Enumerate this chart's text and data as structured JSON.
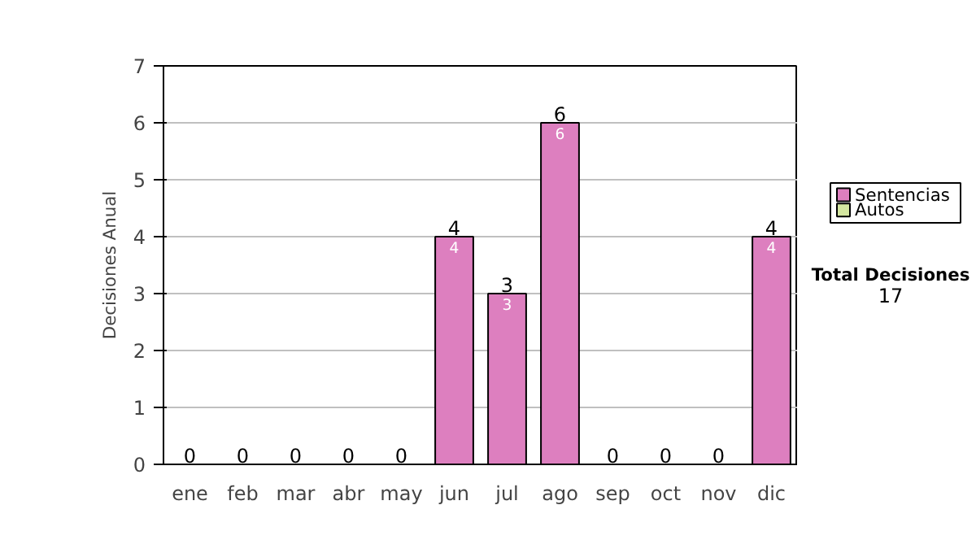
{
  "chart_data": {
    "type": "bar",
    "stacked": true,
    "ylabel": "Decisiones Anual",
    "categories": [
      "ene",
      "feb",
      "mar",
      "abr",
      "may",
      "jun",
      "jul",
      "ago",
      "sep",
      "oct",
      "nov",
      "dic"
    ],
    "series": [
      {
        "name": "Sentencias",
        "color": "#dd7fbf",
        "values": [
          0,
          0,
          0,
          0,
          0,
          4,
          3,
          6,
          0,
          0,
          0,
          4
        ],
        "value_labels": [
          null,
          null,
          null,
          null,
          null,
          "4",
          "3",
          "6",
          null,
          null,
          null,
          "4"
        ]
      },
      {
        "name": "Autos",
        "color": "#d4e6a0",
        "values": [
          0,
          0,
          0,
          0,
          0,
          0,
          0,
          0,
          0,
          0,
          0,
          0
        ]
      }
    ],
    "totals": [
      "0",
      "0",
      "0",
      "0",
      "0",
      "4",
      "3",
      "6",
      "0",
      "0",
      "0",
      "4"
    ],
    "ylim": [
      0,
      7
    ],
    "yticks": [
      0,
      1,
      2,
      3,
      4,
      5,
      6,
      7
    ],
    "grid": "y",
    "legend": "right",
    "annotations": [
      "Total Decisiones",
      "17"
    ]
  }
}
